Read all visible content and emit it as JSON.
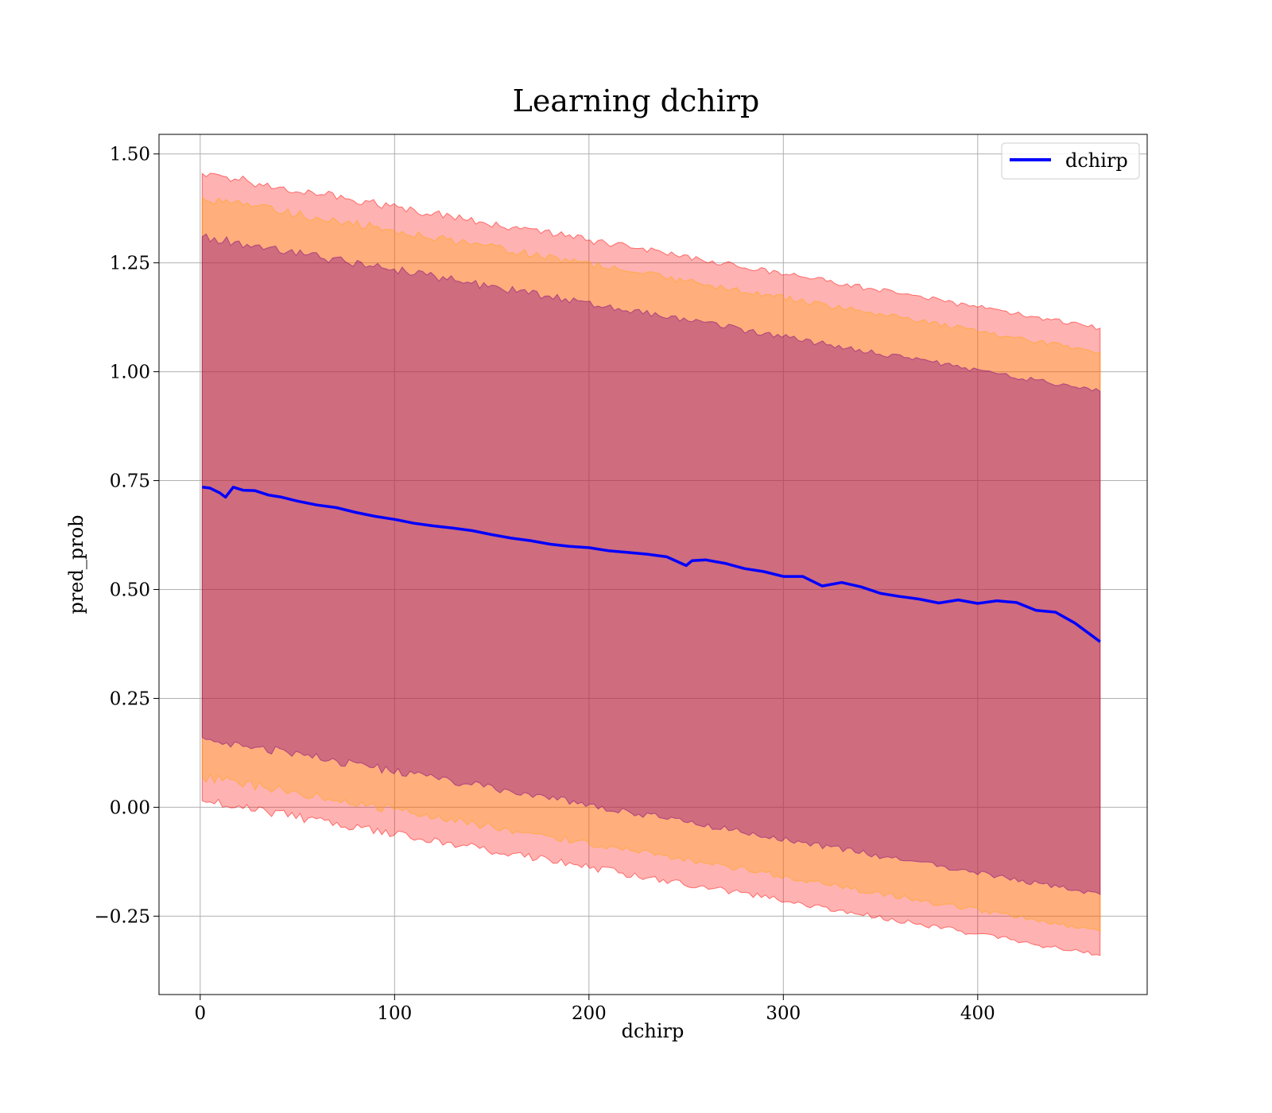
{
  "chart_data": {
    "type": "line",
    "title": "Learning dchirp",
    "xlabel": "dchirp",
    "ylabel": "pred_prob",
    "xlim": [
      -21.2,
      487.2
    ],
    "ylim": [
      -0.43,
      1.545
    ],
    "xticks": [
      0,
      100,
      200,
      300,
      400
    ],
    "xtick_labels": [
      "0",
      "100",
      "200",
      "300",
      "400"
    ],
    "yticks": [
      -0.25,
      0,
      0.25,
      0.5,
      0.75,
      1.0,
      1.25,
      1.5
    ],
    "ytick_labels": [
      "−0.25",
      "0.00",
      "0.25",
      "0.50",
      "0.75",
      "1.00",
      "1.25",
      "1.50"
    ],
    "grid": true,
    "legend_position": "top-right",
    "colors": {
      "line": "#0000ff",
      "band_outer": "#ff0000",
      "band_mid": "#ffa500",
      "band_inner": "#800080"
    },
    "series": [
      {
        "name": "dchirp",
        "x": [
          1,
          5,
          10,
          13,
          17,
          22,
          28,
          35,
          42,
          50,
          60,
          70,
          80,
          90,
          100,
          110,
          120,
          130,
          140,
          150,
          160,
          170,
          180,
          190,
          200,
          210,
          220,
          230,
          240,
          250,
          253,
          260,
          270,
          280,
          290,
          300,
          310,
          320,
          330,
          340,
          350,
          360,
          370,
          380,
          390,
          400,
          410,
          420,
          430,
          440,
          450,
          463
        ],
        "y": [
          0.735,
          0.733,
          0.722,
          0.712,
          0.735,
          0.728,
          0.727,
          0.717,
          0.712,
          0.703,
          0.694,
          0.688,
          0.677,
          0.668,
          0.661,
          0.652,
          0.646,
          0.641,
          0.635,
          0.626,
          0.618,
          0.612,
          0.604,
          0.599,
          0.596,
          0.589,
          0.585,
          0.581,
          0.575,
          0.555,
          0.566,
          0.568,
          0.56,
          0.548,
          0.541,
          0.53,
          0.53,
          0.508,
          0.516,
          0.506,
          0.491,
          0.484,
          0.478,
          0.469,
          0.476,
          0.468,
          0.474,
          0.47,
          0.452,
          0.448,
          0.423,
          0.38
        ]
      },
      {
        "name": "",
        "x": [
          1,
          463
        ],
        "upper_outer": [
          1.455,
          1.1
        ],
        "upper_mid": [
          1.4,
          1.045
        ],
        "upper_inner": [
          1.31,
          0.955
        ],
        "lower_inner": [
          0.16,
          -0.2
        ],
        "lower_mid": [
          0.07,
          -0.285
        ],
        "lower_outer": [
          0.015,
          -0.34
        ]
      }
    ]
  }
}
